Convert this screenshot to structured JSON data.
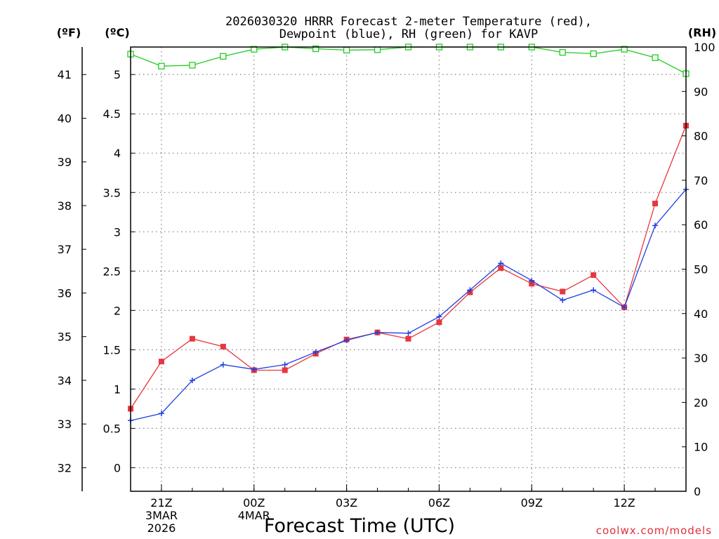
{
  "chart_data": {
    "type": "line",
    "title_lines": [
      "2026030320 HRRR Forecast 2-meter Temperature (red),",
      "Dewpoint (blue), RH (green) for KAVP"
    ],
    "xlabel": "Forecast Time (UTC)",
    "credit": "coolwx.com/models",
    "left_outer_axis": {
      "unit_label": "(ºF)",
      "ticks": [
        32,
        33,
        34,
        35,
        36,
        37,
        38,
        39,
        40,
        41
      ]
    },
    "left_axis": {
      "unit_label": "(ºC)",
      "ylim": [
        -0.3,
        5.35
      ],
      "ticks": [
        0,
        0.5,
        1,
        1.5,
        2,
        2.5,
        3,
        3.5,
        4,
        4.5,
        5
      ],
      "tick_labels": [
        "0",
        "0.5",
        "1",
        "1.5",
        "2",
        "2.5",
        "3",
        "3.5",
        "4",
        "4.5",
        "5"
      ]
    },
    "right_axis": {
      "unit_label": "(RH)",
      "ylim": [
        0,
        100
      ],
      "ticks": [
        0,
        10,
        20,
        30,
        40,
        50,
        60,
        70,
        80,
        90,
        100
      ]
    },
    "x": {
      "range_hours": [
        20,
        38
      ],
      "hours": [
        20,
        21,
        22,
        23,
        24,
        25,
        26,
        27,
        28,
        29,
        30,
        31,
        32,
        33,
        34,
        35,
        36,
        37,
        38
      ]
    },
    "x_ticks": [
      {
        "hour": 21,
        "lines": [
          "21Z",
          "3MAR",
          "2026"
        ]
      },
      {
        "hour": 24,
        "lines": [
          "00Z",
          "4MAR"
        ]
      },
      {
        "hour": 27,
        "lines": [
          "03Z"
        ]
      },
      {
        "hour": 30,
        "lines": [
          "06Z"
        ]
      },
      {
        "hour": 33,
        "lines": [
          "09Z"
        ]
      },
      {
        "hour": 36,
        "lines": [
          "12Z"
        ]
      }
    ],
    "series": [
      {
        "name": "Temperature",
        "axis": "left",
        "unit": "C",
        "color": "#e8363e",
        "marker": "square",
        "values": [
          0.75,
          1.35,
          1.64,
          1.54,
          1.24,
          1.24,
          1.45,
          1.63,
          1.72,
          1.64,
          1.85,
          2.23,
          2.54,
          2.34,
          2.24,
          2.45,
          2.04,
          3.36,
          4.35
        ]
      },
      {
        "name": "Dewpoint",
        "axis": "left",
        "unit": "C",
        "color": "#2040e0",
        "marker": "plus",
        "values": [
          0.6,
          0.69,
          1.11,
          1.31,
          1.25,
          1.31,
          1.47,
          1.62,
          1.72,
          1.71,
          1.92,
          2.26,
          2.6,
          2.38,
          2.13,
          2.26,
          2.04,
          3.08,
          3.54
        ]
      },
      {
        "name": "RH",
        "axis": "right",
        "unit": "%",
        "color": "#22cc22",
        "marker": "open-square",
        "values": [
          98.4,
          95.7,
          95.9,
          97.9,
          99.5,
          100.0,
          99.6,
          99.3,
          99.4,
          100.0,
          100.0,
          100.0,
          100.0,
          100.0,
          98.8,
          98.5,
          99.5,
          97.6,
          94.0
        ]
      }
    ]
  }
}
